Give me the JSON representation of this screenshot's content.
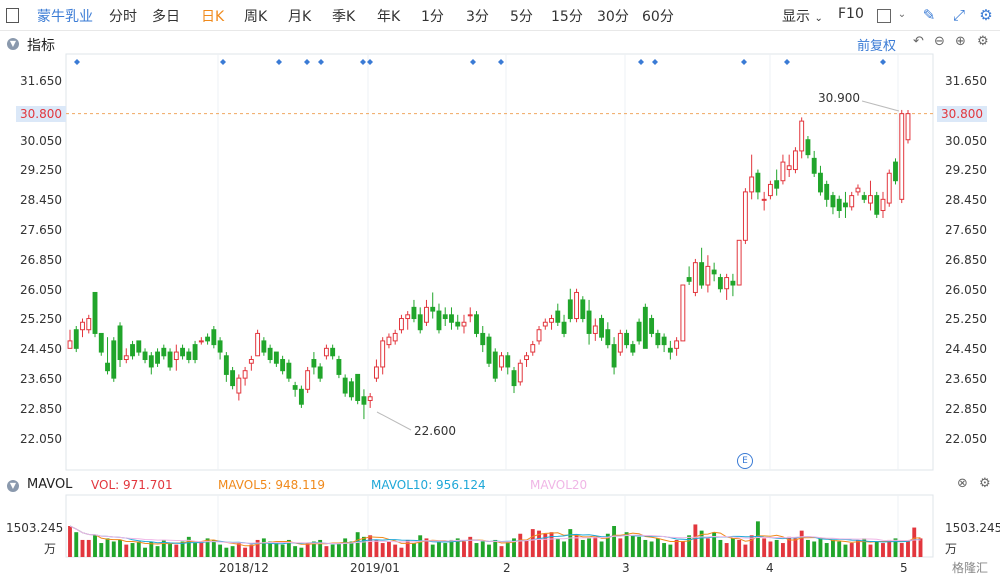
{
  "toolbar": {
    "stock_name": "蒙牛乳业",
    "periods": [
      "分时",
      "多日",
      "日K",
      "周K",
      "月K",
      "季K",
      "年K",
      "1分",
      "3分",
      "5分",
      "15分",
      "30分",
      "60分"
    ],
    "active_period": "日K",
    "display_label": "显示",
    "f10_label": "F10"
  },
  "main_pane": {
    "title": "指标",
    "adjust_label": "前复权",
    "y_ticks": [
      "31.650",
      "30.800",
      "30.050",
      "29.250",
      "28.450",
      "27.650",
      "26.850",
      "26.050",
      "25.250",
      "24.450",
      "23.650",
      "22.850",
      "22.050"
    ],
    "current_price": "30.800",
    "high_label": "30.900",
    "low_label": "22.600",
    "event_marker": "E"
  },
  "volume_pane": {
    "title": "MAVOL",
    "vol": "VOL: 971.701",
    "mavol5": "MAVOL5: 948.119",
    "mavol10": "MAVOL10: 956.124",
    "mavol20": "MAVOL20",
    "y_tick": "1503.245",
    "unit": "万"
  },
  "x_axis": [
    "2018/12",
    "2019/01",
    "2",
    "3",
    "4",
    "5"
  ],
  "watermark": "格隆汇",
  "colors": {
    "up": "#e2363d",
    "down": "#21a52b",
    "accent": "#3a7bd5",
    "orange": "#f08a1c"
  },
  "chart_data": {
    "type": "candlestick",
    "candles": [
      [
        24.5,
        25.0,
        24.5,
        24.7
      ],
      [
        25.0,
        25.1,
        24.4,
        24.5
      ],
      [
        25.0,
        25.3,
        24.8,
        25.2
      ],
      [
        25.0,
        25.4,
        24.9,
        25.3
      ],
      [
        26.0,
        26.0,
        24.8,
        24.9
      ],
      [
        24.9,
        24.9,
        24.3,
        24.4
      ],
      [
        24.1,
        24.8,
        23.8,
        23.9
      ],
      [
        24.7,
        24.8,
        23.6,
        23.7
      ],
      [
        25.1,
        25.2,
        24.0,
        24.2
      ],
      [
        24.2,
        24.5,
        24.1,
        24.3
      ],
      [
        24.6,
        24.7,
        24.2,
        24.3
      ],
      [
        24.7,
        24.7,
        24.3,
        24.4
      ],
      [
        24.4,
        24.5,
        24.1,
        24.2
      ],
      [
        24.3,
        24.4,
        23.8,
        24.0
      ],
      [
        24.4,
        24.5,
        24.0,
        24.1
      ],
      [
        24.5,
        24.6,
        24.2,
        24.3
      ],
      [
        24.4,
        24.5,
        23.9,
        24.0
      ],
      [
        24.2,
        24.6,
        23.9,
        24.4
      ],
      [
        24.5,
        24.6,
        24.2,
        24.3
      ],
      [
        24.4,
        24.5,
        24.1,
        24.2
      ],
      [
        24.6,
        24.7,
        24.1,
        24.2
      ],
      [
        24.7,
        24.8,
        24.6,
        24.7
      ],
      [
        24.8,
        24.9,
        24.6,
        24.7
      ],
      [
        25.0,
        25.1,
        24.5,
        24.6
      ],
      [
        24.7,
        24.8,
        24.2,
        24.4
      ],
      [
        24.3,
        24.4,
        23.6,
        23.8
      ],
      [
        23.9,
        24.0,
        23.4,
        23.5
      ],
      [
        23.3,
        23.8,
        23.1,
        23.7
      ],
      [
        23.7,
        24.0,
        23.5,
        23.9
      ],
      [
        24.1,
        24.3,
        23.9,
        24.2
      ],
      [
        24.3,
        25.0,
        24.3,
        24.9
      ],
      [
        24.7,
        24.8,
        24.3,
        24.4
      ],
      [
        24.5,
        24.6,
        24.1,
        24.2
      ],
      [
        24.4,
        24.4,
        24.0,
        24.1
      ],
      [
        24.2,
        24.3,
        23.8,
        23.9
      ],
      [
        24.1,
        24.2,
        23.6,
        23.7
      ],
      [
        23.5,
        23.6,
        23.2,
        23.4
      ],
      [
        23.4,
        23.5,
        22.9,
        23.0
      ],
      [
        23.4,
        24.0,
        23.3,
        23.9
      ],
      [
        24.2,
        24.4,
        23.8,
        24.0
      ],
      [
        24.0,
        24.1,
        23.6,
        23.7
      ],
      [
        24.3,
        24.6,
        24.2,
        24.5
      ],
      [
        24.5,
        24.6,
        24.2,
        24.3
      ],
      [
        24.2,
        24.3,
        23.7,
        23.8
      ],
      [
        23.7,
        23.8,
        23.2,
        23.3
      ],
      [
        23.6,
        23.7,
        23.1,
        23.2
      ],
      [
        23.8,
        23.8,
        23.0,
        23.1
      ],
      [
        23.2,
        23.4,
        22.6,
        23.0
      ],
      [
        23.1,
        23.3,
        22.9,
        23.2
      ],
      [
        23.7,
        24.2,
        23.6,
        24.0
      ],
      [
        24.0,
        24.8,
        23.8,
        24.7
      ],
      [
        24.6,
        24.9,
        24.5,
        24.8
      ],
      [
        24.7,
        25.0,
        24.6,
        24.9
      ],
      [
        25.0,
        25.4,
        24.9,
        25.3
      ],
      [
        25.3,
        25.5,
        25.0,
        25.4
      ],
      [
        25.6,
        25.8,
        25.2,
        25.3
      ],
      [
        25.4,
        25.6,
        24.9,
        25.0
      ],
      [
        25.2,
        25.8,
        25.1,
        25.6
      ],
      [
        25.6,
        26.0,
        25.3,
        25.5
      ],
      [
        25.5,
        25.7,
        24.9,
        25.0
      ],
      [
        25.4,
        25.6,
        25.1,
        25.3
      ],
      [
        25.4,
        25.6,
        25.0,
        25.2
      ],
      [
        25.2,
        25.4,
        25.0,
        25.1
      ],
      [
        25.1,
        25.4,
        24.9,
        25.2
      ],
      [
        25.4,
        25.6,
        25.2,
        25.4
      ],
      [
        25.4,
        25.5,
        24.8,
        24.9
      ],
      [
        24.9,
        25.1,
        24.4,
        24.6
      ],
      [
        24.8,
        24.9,
        24.0,
        24.1
      ],
      [
        24.4,
        24.5,
        23.6,
        23.7
      ],
      [
        24.0,
        24.4,
        23.9,
        24.3
      ],
      [
        24.3,
        24.4,
        23.8,
        24.0
      ],
      [
        23.9,
        24.0,
        23.3,
        23.5
      ],
      [
        23.6,
        24.2,
        23.5,
        24.1
      ],
      [
        24.2,
        24.4,
        24.0,
        24.3
      ],
      [
        24.4,
        24.7,
        24.3,
        24.6
      ],
      [
        24.7,
        25.1,
        24.6,
        25.0
      ],
      [
        25.1,
        25.3,
        25.0,
        25.2
      ],
      [
        25.2,
        25.4,
        25.0,
        25.3
      ],
      [
        25.5,
        25.7,
        25.1,
        25.2
      ],
      [
        25.2,
        25.4,
        24.8,
        24.9
      ],
      [
        25.8,
        26.1,
        25.2,
        25.3
      ],
      [
        25.3,
        26.1,
        25.2,
        26.0
      ],
      [
        25.8,
        25.9,
        25.2,
        25.3
      ],
      [
        25.5,
        25.8,
        24.6,
        24.9
      ],
      [
        24.9,
        25.3,
        24.7,
        25.1
      ],
      [
        25.3,
        25.4,
        24.7,
        24.8
      ],
      [
        25.0,
        25.2,
        24.5,
        24.6
      ],
      [
        24.6,
        24.8,
        23.8,
        24.0
      ],
      [
        24.4,
        25.0,
        24.3,
        24.9
      ],
      [
        24.9,
        25.0,
        24.5,
        24.6
      ],
      [
        24.6,
        24.7,
        24.3,
        24.4
      ],
      [
        25.2,
        25.3,
        24.6,
        24.7
      ],
      [
        25.6,
        25.7,
        24.5,
        24.5
      ],
      [
        25.3,
        25.4,
        24.8,
        24.9
      ],
      [
        24.9,
        25.0,
        24.5,
        24.6
      ],
      [
        24.8,
        24.9,
        24.4,
        24.6
      ],
      [
        24.5,
        24.7,
        24.2,
        24.4
      ],
      [
        24.5,
        24.8,
        24.3,
        24.7
      ],
      [
        24.7,
        26.2,
        24.7,
        26.2
      ],
      [
        26.4,
        26.7,
        26.2,
        26.3
      ],
      [
        26.0,
        26.9,
        25.9,
        26.8
      ],
      [
        26.8,
        27.2,
        26.1,
        26.2
      ],
      [
        26.2,
        27.0,
        26.0,
        26.7
      ],
      [
        26.6,
        26.8,
        26.3,
        26.5
      ],
      [
        26.4,
        26.5,
        26.0,
        26.1
      ],
      [
        26.1,
        26.5,
        25.8,
        26.4
      ],
      [
        26.3,
        26.5,
        25.9,
        26.2
      ],
      [
        26.2,
        27.4,
        26.2,
        27.4
      ],
      [
        27.4,
        28.8,
        27.3,
        28.7
      ],
      [
        28.7,
        29.7,
        28.5,
        29.1
      ],
      [
        29.2,
        29.3,
        28.5,
        28.7
      ],
      [
        28.5,
        28.7,
        28.2,
        28.5
      ],
      [
        28.6,
        29.0,
        28.5,
        28.9
      ],
      [
        29.0,
        29.3,
        28.6,
        28.8
      ],
      [
        29.0,
        29.7,
        28.9,
        29.5
      ],
      [
        29.3,
        29.7,
        29.1,
        29.4
      ],
      [
        29.3,
        29.9,
        29.2,
        29.8
      ],
      [
        29.8,
        30.7,
        29.6,
        30.6
      ],
      [
        30.1,
        30.2,
        29.6,
        29.7
      ],
      [
        29.6,
        29.8,
        29.1,
        29.2
      ],
      [
        29.2,
        29.4,
        28.6,
        28.7
      ],
      [
        28.9,
        29.0,
        28.3,
        28.5
      ],
      [
        28.6,
        28.7,
        28.1,
        28.3
      ],
      [
        28.5,
        28.6,
        28.0,
        28.2
      ],
      [
        28.4,
        28.7,
        28.0,
        28.3
      ],
      [
        28.3,
        28.7,
        28.2,
        28.6
      ],
      [
        28.7,
        28.9,
        28.6,
        28.8
      ],
      [
        28.6,
        28.7,
        28.4,
        28.5
      ],
      [
        28.4,
        29.0,
        28.2,
        28.6
      ],
      [
        28.6,
        28.7,
        28.0,
        28.1
      ],
      [
        28.2,
        28.7,
        28.0,
        28.5
      ],
      [
        28.4,
        29.3,
        28.3,
        29.2
      ],
      [
        29.5,
        29.6,
        28.9,
        29.0
      ],
      [
        28.5,
        30.9,
        28.4,
        30.8
      ],
      [
        30.1,
        30.9,
        30.0,
        30.8
      ]
    ],
    "volume": [
      1.0,
      0.8,
      0.55,
      0.55,
      0.7,
      0.45,
      0.6,
      0.5,
      0.55,
      0.4,
      0.45,
      0.5,
      0.3,
      0.5,
      0.35,
      0.55,
      0.45,
      0.4,
      0.5,
      0.65,
      0.45,
      0.5,
      0.6,
      0.55,
      0.4,
      0.3,
      0.35,
      0.45,
      0.3,
      0.4,
      0.55,
      0.6,
      0.5,
      0.45,
      0.4,
      0.55,
      0.35,
      0.3,
      0.45,
      0.5,
      0.55,
      0.35,
      0.4,
      0.45,
      0.6,
      0.5,
      0.8,
      0.65,
      0.7,
      0.55,
      0.45,
      0.5,
      0.4,
      0.3,
      0.55,
      0.45,
      0.7,
      0.6,
      0.4,
      0.5,
      0.45,
      0.55,
      0.6,
      0.5,
      0.65,
      0.45,
      0.5,
      0.4,
      0.55,
      0.35,
      0.5,
      0.6,
      0.75,
      0.55,
      0.9,
      0.85,
      0.75,
      0.8,
      0.6,
      0.5,
      0.9,
      0.7,
      0.55,
      0.6,
      0.65,
      0.5,
      0.75,
      1.0,
      0.6,
      0.8,
      0.7,
      0.65,
      0.55,
      0.5,
      0.6,
      0.45,
      0.4,
      0.55,
      0.5,
      0.7,
      1.05,
      0.85,
      0.6,
      0.8,
      0.55,
      0.45,
      0.6,
      0.55,
      0.4,
      0.7,
      1.15,
      0.6,
      0.5,
      0.55,
      0.45,
      0.65,
      0.6,
      0.85,
      0.55,
      0.5,
      0.6,
      0.45,
      0.55,
      0.5,
      0.4,
      0.45,
      0.55,
      0.6,
      0.4,
      0.5,
      0.45,
      0.55,
      0.6,
      0.45,
      0.5,
      0.95,
      0.6
    ],
    "y_range": [
      22.05,
      31.65
    ]
  }
}
